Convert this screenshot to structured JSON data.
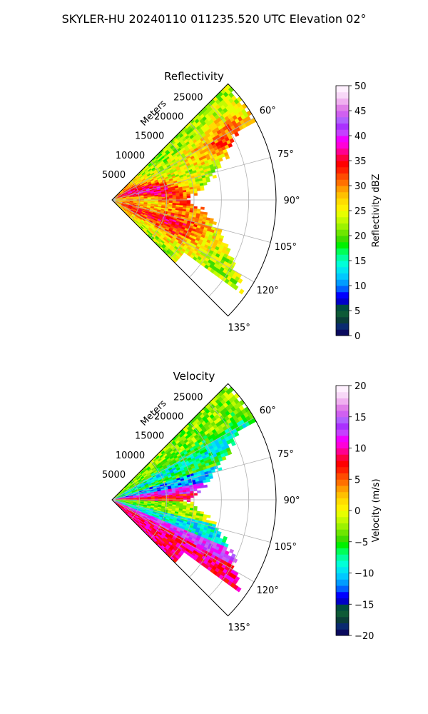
{
  "figure": {
    "suptitle": "SKYLER-HU  20240110  011235.520 UTC Elevation 02°"
  },
  "chart_data": [
    {
      "type": "heatmap",
      "subtype": "polar-sector (radar PPI)",
      "title": "Reflectivity",
      "radial_label": "Meters",
      "range_ticks": [
        5000,
        10000,
        15000,
        20000,
        25000
      ],
      "range_ticks_text": [
        "5000",
        "10000",
        "15000",
        "20000",
        "25000"
      ],
      "angle_ticks": [
        60,
        75,
        90,
        105,
        120,
        135
      ],
      "angle_ticks_text": [
        "60°",
        "75°",
        "90°",
        "105°",
        "120°",
        "135°"
      ],
      "angle_range": [
        45,
        135
      ],
      "range_max": 30000,
      "grid": true,
      "colorbar": {
        "label": "Reflectivity dBZ",
        "range": [
          0,
          50
        ],
        "ticks": [
          0,
          5,
          10,
          15,
          20,
          25,
          30,
          35,
          40,
          45,
          50
        ],
        "ticks_text": [
          "0",
          "5",
          "10",
          "15",
          "20",
          "25",
          "30",
          "35",
          "40",
          "45",
          "50"
        ],
        "levels": 50,
        "colors": [
          "#0a0a5e",
          "#0a2a70",
          "#0b3d38",
          "#0e5a36",
          "#004c40",
          "#0000c8",
          "#0000ff",
          "#0060ff",
          "#009cff",
          "#00c8ff",
          "#00e6f0",
          "#00ffd8",
          "#00ffa0",
          "#00ff58",
          "#00f000",
          "#40dc00",
          "#6ee600",
          "#9cf200",
          "#c4fa00",
          "#e6ff00",
          "#fff000",
          "#ffdc00",
          "#ffc000",
          "#ff9c00",
          "#ff7000",
          "#ff4c00",
          "#ff2000",
          "#ff0000",
          "#ff0040",
          "#ff0090",
          "#ff00d8",
          "#f000ff",
          "#c440ff",
          "#aa30ff",
          "#b060ff",
          "#d060f0",
          "#e080e8",
          "#f0b0f0",
          "#f8d8f8",
          "#fff0ff"
        ]
      }
    },
    {
      "type": "heatmap",
      "subtype": "polar-sector (radar PPI)",
      "title": "Velocity",
      "radial_label": "Meters",
      "range_ticks": [
        5000,
        10000,
        15000,
        20000,
        25000
      ],
      "range_ticks_text": [
        "5000",
        "10000",
        "15000",
        "20000",
        "25000"
      ],
      "angle_ticks": [
        60,
        75,
        90,
        105,
        120,
        135
      ],
      "angle_ticks_text": [
        "60°",
        "75°",
        "90°",
        "105°",
        "120°",
        "135°"
      ],
      "angle_range": [
        45,
        135
      ],
      "range_max": 30000,
      "grid": true,
      "colorbar": {
        "label": "Velocity (m/s)",
        "range": [
          -20,
          20
        ],
        "ticks": [
          -20,
          -15,
          -10,
          -5,
          0,
          5,
          10,
          15,
          20
        ],
        "ticks_text": [
          "−20",
          "−15",
          "−10",
          "−5",
          "0",
          "5",
          "10",
          "15",
          "20"
        ],
        "levels": 40,
        "colors": [
          "#0a0a5e",
          "#0a2a70",
          "#0b3d38",
          "#0e5a36",
          "#004c40",
          "#0000c8",
          "#0000ff",
          "#0060ff",
          "#009cff",
          "#00c8ff",
          "#00e6f0",
          "#00ffd8",
          "#00ffa0",
          "#00ff58",
          "#00f000",
          "#40dc00",
          "#6ee600",
          "#9cf200",
          "#c4fa00",
          "#e6ff00",
          "#fff000",
          "#ffdc00",
          "#ffc000",
          "#ff9c00",
          "#ff7000",
          "#ff4c00",
          "#ff2000",
          "#ff0000",
          "#ff0040",
          "#ff0090",
          "#ff00d8",
          "#f000ff",
          "#c440ff",
          "#aa30ff",
          "#b060ff",
          "#d060f0",
          "#e080e8",
          "#f0b0f0",
          "#f8d8f8",
          "#fff0ff"
        ]
      }
    }
  ]
}
